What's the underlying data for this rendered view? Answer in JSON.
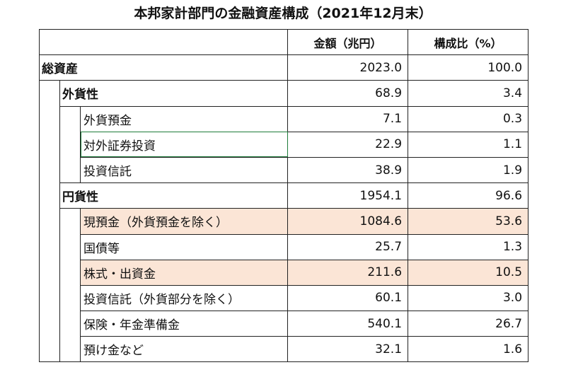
{
  "title": "本邦家計部門の金融資産構成（2021年12月末）",
  "columns": {
    "amount": "金額（兆円）",
    "ratio": "構成比（%）"
  },
  "colors": {
    "highlight": "#fbe5d6",
    "selection_border": "#1e7b3a"
  },
  "rows": [
    {
      "label": "総資産",
      "amount": "2023.0",
      "ratio": "100.0"
    },
    {
      "label": "外貨性",
      "amount": "68.9",
      "ratio": "3.4"
    },
    {
      "label": "外貨預金",
      "amount": "7.1",
      "ratio": "0.3"
    },
    {
      "label": "対外証券投資",
      "amount": "22.9",
      "ratio": "1.1"
    },
    {
      "label": "投資信託",
      "amount": "38.9",
      "ratio": "1.9"
    },
    {
      "label": "円貨性",
      "amount": "1954.1",
      "ratio": "96.6"
    },
    {
      "label": "現預金（外貨預金を除く）",
      "amount": "1084.6",
      "ratio": "53.6"
    },
    {
      "label": "国債等",
      "amount": "25.7",
      "ratio": "1.3"
    },
    {
      "label": "株式・出資金",
      "amount": "211.6",
      "ratio": "10.5"
    },
    {
      "label": "投資信託（外貨部分を除く）",
      "amount": "60.1",
      "ratio": "3.0"
    },
    {
      "label": "保険・年金準備金",
      "amount": "540.1",
      "ratio": "26.7"
    },
    {
      "label": "預け金など",
      "amount": "32.1",
      "ratio": "1.6"
    }
  ]
}
